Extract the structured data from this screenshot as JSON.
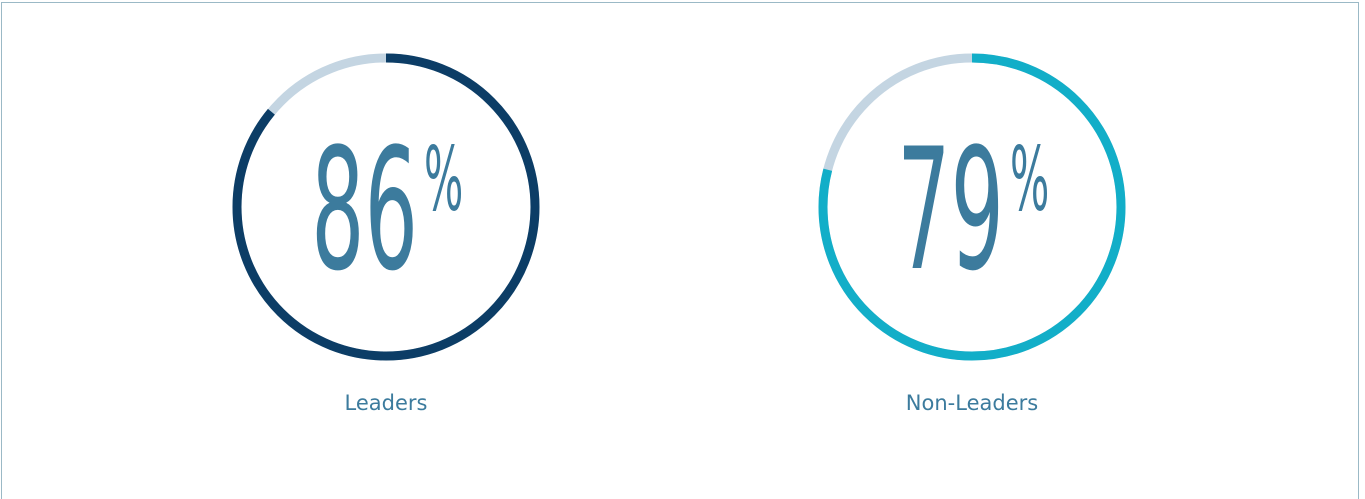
{
  "chart_data": [
    {
      "type": "donut",
      "categories": [
        "Leaders"
      ],
      "values": [
        86
      ],
      "unit": "%",
      "color": "#0c3d66",
      "track_color": "#c4d5e2"
    },
    {
      "type": "donut",
      "categories": [
        "Non-Leaders"
      ],
      "values": [
        79
      ],
      "unit": "%",
      "color": "#12aec8",
      "track_color": "#c4d5e2"
    }
  ]
}
